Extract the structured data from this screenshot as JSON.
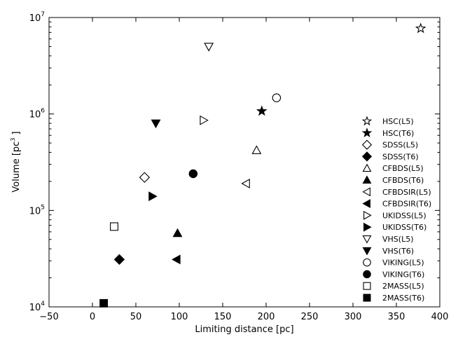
{
  "chart_data": {
    "type": "scatter",
    "xlabel": "Limiting distance [pc]",
    "ylabel_parts": {
      "text": "Volume [pc",
      "exp": "3",
      "close": " ]"
    },
    "xlim": [
      -50,
      400
    ],
    "ylim": [
      10000,
      10000000
    ],
    "yscale": "log",
    "grid": false,
    "legend_position": "right",
    "x_ticks": [
      {
        "value": -50,
        "label": "−50"
      },
      {
        "value": 0,
        "label": "0"
      },
      {
        "value": 50,
        "label": "50"
      },
      {
        "value": 100,
        "label": "100"
      },
      {
        "value": 150,
        "label": "150"
      },
      {
        "value": 200,
        "label": "200"
      },
      {
        "value": 250,
        "label": "250"
      },
      {
        "value": 300,
        "label": "300"
      },
      {
        "value": 350,
        "label": "350"
      },
      {
        "value": 400,
        "label": "400"
      }
    ],
    "y_ticks": [
      {
        "value": 10000,
        "base": "10",
        "exp": "4"
      },
      {
        "value": 100000,
        "base": "10",
        "exp": "5"
      },
      {
        "value": 1000000,
        "base": "10",
        "exp": "6"
      },
      {
        "value": 10000000,
        "base": "10",
        "exp": "7"
      }
    ],
    "series": [
      {
        "name": "HSC(L5)",
        "marker": "star",
        "filled": false,
        "x": 378,
        "y": 7700000
      },
      {
        "name": "HSC(T6)",
        "marker": "star",
        "filled": true,
        "x": 195,
        "y": 1070000
      },
      {
        "name": "SDSS(L5)",
        "marker": "diamond",
        "filled": false,
        "x": 60,
        "y": 220000
      },
      {
        "name": "SDSS(T6)",
        "marker": "diamond",
        "filled": true,
        "x": 31,
        "y": 31000
      },
      {
        "name": "CFBDS(L5)",
        "marker": "triangle-up",
        "filled": false,
        "x": 189,
        "y": 420000
      },
      {
        "name": "CFBDS(T6)",
        "marker": "triangle-up",
        "filled": true,
        "x": 98,
        "y": 58000
      },
      {
        "name": "CFBDSIR(L5)",
        "marker": "triangle-left",
        "filled": false,
        "x": 177,
        "y": 190000
      },
      {
        "name": "CFBDSIR(T6)",
        "marker": "triangle-left",
        "filled": true,
        "x": 97,
        "y": 31000
      },
      {
        "name": "UKIDSS(L5)",
        "marker": "triangle-right",
        "filled": false,
        "x": 128,
        "y": 860000
      },
      {
        "name": "UKIDSS(T6)",
        "marker": "triangle-right",
        "filled": true,
        "x": 69,
        "y": 140000
      },
      {
        "name": "VHS(L5)",
        "marker": "triangle-down",
        "filled": false,
        "x": 134,
        "y": 5000000
      },
      {
        "name": "VHS(T6)",
        "marker": "triangle-down",
        "filled": true,
        "x": 73,
        "y": 800000
      },
      {
        "name": "VIKING(L5)",
        "marker": "circle",
        "filled": false,
        "x": 212,
        "y": 1470000
      },
      {
        "name": "VIKING(T6)",
        "marker": "circle",
        "filled": true,
        "x": 116,
        "y": 240000
      },
      {
        "name": "2MASS(L5)",
        "marker": "square",
        "filled": false,
        "x": 25,
        "y": 68000
      },
      {
        "name": "2MASS(T6)",
        "marker": "square",
        "filled": true,
        "x": 13,
        "y": 10900
      }
    ]
  }
}
